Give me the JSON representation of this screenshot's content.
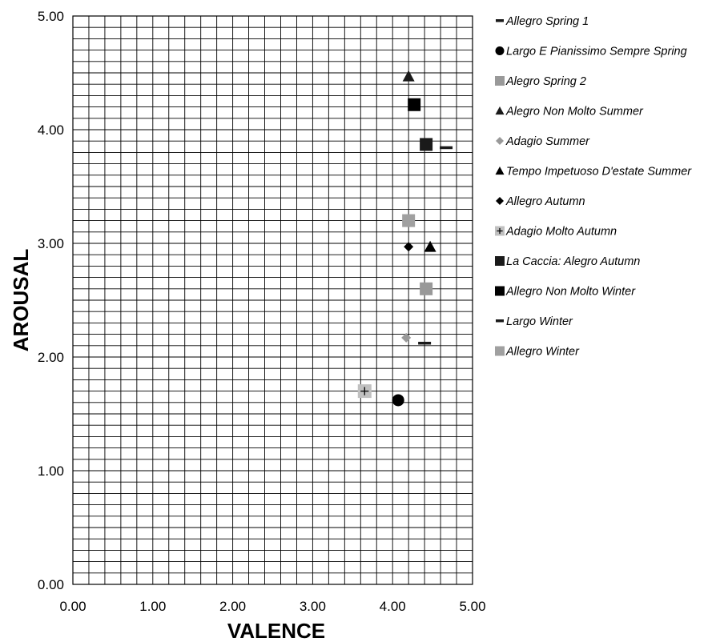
{
  "chart_data": {
    "type": "scatter",
    "title": "",
    "xlabel": "VALENCE",
    "ylabel": "AROUSAL",
    "xlim": [
      0,
      5
    ],
    "ylim": [
      0,
      5
    ],
    "x_ticks": [
      "0.00",
      "1.00",
      "2.00",
      "3.00",
      "4.00",
      "5.00"
    ],
    "y_ticks": [
      "0.00",
      "1.00",
      "2.00",
      "3.00",
      "4.00",
      "5.00"
    ],
    "grid": true,
    "legend_position": "right",
    "series": [
      {
        "name": "Allegro Spring 1",
        "marker": "dash",
        "color": "#1a1a1a",
        "points": [
          [
            4.67,
            3.84
          ]
        ]
      },
      {
        "name": "Largo E Pianissimo Sempre Spring",
        "marker": "circle",
        "color": "#000000",
        "points": [
          [
            4.07,
            1.62
          ]
        ]
      },
      {
        "name": "Alegro Spring 2",
        "marker": "square",
        "color": "#999999",
        "points": [
          [
            4.42,
            2.6
          ]
        ]
      },
      {
        "name": "Alegro Non Molto Summer",
        "marker": "triangle",
        "color": "#1a1a1a",
        "points": [
          [
            4.2,
            4.47
          ]
        ]
      },
      {
        "name": "Adagio Summer",
        "marker": "diamond",
        "color": "#999999",
        "points": [
          [
            4.17,
            2.17
          ]
        ]
      },
      {
        "name": "Tempo Impetuoso D'estate Summer",
        "marker": "triangle",
        "color": "#000000",
        "points": [
          [
            4.47,
            2.97
          ]
        ]
      },
      {
        "name": "Allegro Autumn",
        "marker": "diamond",
        "color": "#000000",
        "points": [
          [
            4.2,
            2.97
          ]
        ]
      },
      {
        "name": "Adagio Molto Autumn",
        "marker": "square-plus",
        "color": "#c0c0c0",
        "points": [
          [
            3.65,
            1.7
          ]
        ]
      },
      {
        "name": "La Caccia: Alegro Autumn",
        "marker": "square",
        "color": "#1a1a1a",
        "points": [
          [
            4.42,
            3.87
          ]
        ]
      },
      {
        "name": "Allegro Non Molto Winter",
        "marker": "square",
        "color": "#000000",
        "points": [
          [
            4.27,
            4.22
          ]
        ]
      },
      {
        "name": "Largo Winter",
        "marker": "dash",
        "color": "#1a1a1a",
        "points": [
          [
            4.4,
            2.12
          ]
        ]
      },
      {
        "name": "Allegro Winter",
        "marker": "square",
        "color": "#a0a0a0",
        "points": [
          [
            4.2,
            3.2
          ]
        ]
      }
    ]
  }
}
